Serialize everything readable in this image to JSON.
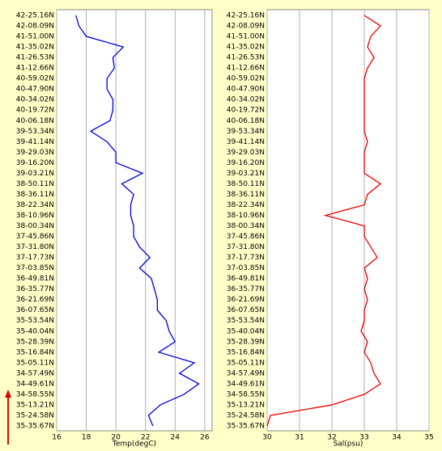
{
  "chart_data": [
    {
      "type": "line",
      "orientation": "horizontal",
      "xlabel": "Temp(degC)",
      "categories": [
        "42-25.16N",
        "42-08.09N",
        "41-51.00N",
        "41-35.02N",
        "41-26.53N",
        "41-12.66N",
        "40-59.02N",
        "40-47.90N",
        "40-34.02N",
        "40-19.72N",
        "40-06.18N",
        "39-53.34N",
        "39-41.14N",
        "39-29.03N",
        "39-16.20N",
        "39-03.21N",
        "38-50.11N",
        "38-36.11N",
        "38-22.34N",
        "38-10.96N",
        "38-00.34N",
        "37-45.86N",
        "37-31.80N",
        "37-17.73N",
        "37-03.85N",
        "36-49.81N",
        "36-35.77N",
        "36-21.69N",
        "36-07.65N",
        "35-53.54N",
        "35-40.04N",
        "35-28.39N",
        "35-16.84N",
        "35-05.11N",
        "34-57.49N",
        "34-49.61N",
        "34-58.55N",
        "35-13.21N",
        "35-24.58N",
        "35-35.67N"
      ],
      "series": [
        {
          "color": "#0000dd",
          "values": [
            17.3,
            17.5,
            18.0,
            20.5,
            19.8,
            19.9,
            19.4,
            19.4,
            19.8,
            19.8,
            19.6,
            18.3,
            19.4,
            20.0,
            20.0,
            21.8,
            20.4,
            21.2,
            21.0,
            21.0,
            21.2,
            21.2,
            21.6,
            22.3,
            21.6,
            22.4,
            22.6,
            22.8,
            22.8,
            23.4,
            23.6,
            24.0,
            22.9,
            25.3,
            24.3,
            25.6,
            24.6,
            23.0,
            22.2,
            22.5
          ]
        }
      ],
      "xlim": [
        16,
        26.5
      ],
      "xticks": [
        16,
        18,
        20,
        22,
        24,
        26
      ],
      "grid": true
    },
    {
      "type": "line",
      "orientation": "horizontal",
      "xlabel": "Sal(psu)",
      "categories": [
        "42-25.16N",
        "42-08.09N",
        "41-51.00N",
        "41-35.02N",
        "41-26.53N",
        "41-12.66N",
        "40-59.02N",
        "40-47.90N",
        "40-34.02N",
        "40-19.72N",
        "40-06.18N",
        "39-53.34N",
        "39-41.14N",
        "39-29.03N",
        "39-16.20N",
        "39-03.21N",
        "38-50.11N",
        "38-36.11N",
        "38-22.34N",
        "38-10.96N",
        "38-00.34N",
        "37-45.86N",
        "37-31.80N",
        "37-17.73N",
        "37-03.85N",
        "36-49.81N",
        "36-35.77N",
        "36-21.69N",
        "36-07.65N",
        "35-53.54N",
        "35-40.04N",
        "35-28.39N",
        "35-16.84N",
        "35-05.11N",
        "34-57.49N",
        "34-49.61N",
        "34-58.55N",
        "35-13.21N",
        "35-24.58N",
        "35-35.67N"
      ],
      "series": [
        {
          "color": "#ee0000",
          "values": [
            33.0,
            33.5,
            33.2,
            33.1,
            33.3,
            33.1,
            33.0,
            33.0,
            33.0,
            33.0,
            33.0,
            33.0,
            33.1,
            33.0,
            33.0,
            33.0,
            33.5,
            33.1,
            33.0,
            31.8,
            33.0,
            33.0,
            33.2,
            33.4,
            33.0,
            33.1,
            33.0,
            33.1,
            33.0,
            33.0,
            32.9,
            33.1,
            33.0,
            33.2,
            33.3,
            33.5,
            33.0,
            32.0,
            30.1,
            30.0
          ]
        }
      ],
      "xlim": [
        30,
        35
      ],
      "xticks": [
        30,
        31,
        32,
        33,
        34,
        35
      ],
      "grid": true
    }
  ]
}
